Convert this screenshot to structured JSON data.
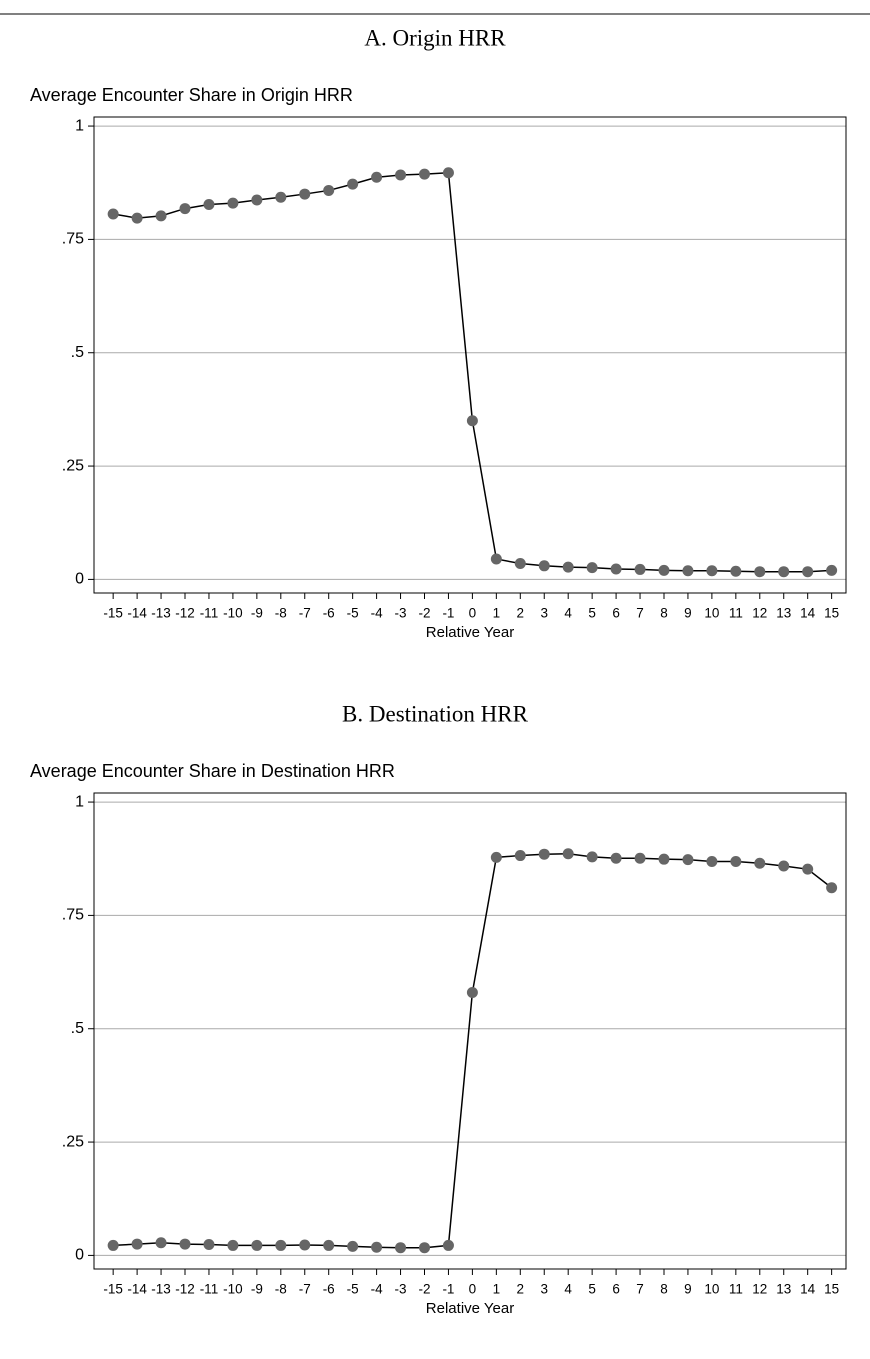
{
  "chart_data": [
    {
      "type": "line",
      "title": "A. Origin HRR",
      "y_label": "Average Encounter Share in Origin HRR",
      "x_label": "Relative Year",
      "x": [
        -15,
        -14,
        -13,
        -12,
        -11,
        -10,
        -9,
        -8,
        -7,
        -6,
        -5,
        -4,
        -3,
        -2,
        -1,
        0,
        1,
        2,
        3,
        4,
        5,
        6,
        7,
        8,
        9,
        10,
        11,
        12,
        13,
        14,
        15
      ],
      "values": [
        0.806,
        0.797,
        0.802,
        0.818,
        0.827,
        0.83,
        0.837,
        0.843,
        0.85,
        0.858,
        0.872,
        0.887,
        0.892,
        0.894,
        0.897,
        0.35,
        0.045,
        0.035,
        0.03,
        0.027,
        0.026,
        0.023,
        0.022,
        0.02,
        0.019,
        0.019,
        0.018,
        0.017,
        0.017,
        0.017,
        0.02
      ],
      "color": "#666666",
      "line_color": "#000000",
      "xlim": [
        -15.8,
        15.6
      ],
      "xticks": [
        -15,
        -14,
        -13,
        -12,
        -11,
        -10,
        -9,
        -8,
        -7,
        -6,
        -5,
        -4,
        -3,
        -2,
        -1,
        0,
        1,
        2,
        3,
        4,
        5,
        6,
        7,
        8,
        9,
        10,
        11,
        12,
        13,
        14,
        15
      ],
      "ylim": [
        -0.03,
        1.02
      ],
      "yticks": [
        0,
        {
          "value": 0.25,
          "label": ".25"
        },
        {
          "value": 0.5,
          "label": ".5"
        },
        {
          "value": 0.75,
          "label": ".75"
        },
        1
      ],
      "grid": true
    },
    {
      "type": "line",
      "title": "B. Destination HRR",
      "y_label": "Average Encounter Share in Destination HRR",
      "x_label": "Relative Year",
      "x": [
        -15,
        -14,
        -13,
        -12,
        -11,
        -10,
        -9,
        -8,
        -7,
        -6,
        -5,
        -4,
        -3,
        -2,
        -1,
        0,
        1,
        2,
        3,
        4,
        5,
        6,
        7,
        8,
        9,
        10,
        11,
        12,
        13,
        14,
        15
      ],
      "values": [
        0.022,
        0.025,
        0.028,
        0.025,
        0.024,
        0.022,
        0.022,
        0.022,
        0.023,
        0.022,
        0.02,
        0.018,
        0.017,
        0.017,
        0.022,
        0.58,
        0.878,
        0.882,
        0.885,
        0.886,
        0.879,
        0.876,
        0.876,
        0.874,
        0.873,
        0.869,
        0.869,
        0.865,
        0.859,
        0.852,
        0.811
      ],
      "color": "#666666",
      "line_color": "#000000",
      "xlim": [
        -15.8,
        15.6
      ],
      "xticks": [
        -15,
        -14,
        -13,
        -12,
        -11,
        -10,
        -9,
        -8,
        -7,
        -6,
        -5,
        -4,
        -3,
        -2,
        -1,
        0,
        1,
        2,
        3,
        4,
        5,
        6,
        7,
        8,
        9,
        10,
        11,
        12,
        13,
        14,
        15
      ],
      "ylim": [
        -0.03,
        1.02
      ],
      "yticks": [
        0,
        {
          "value": 0.25,
          "label": ".25"
        },
        {
          "value": 0.5,
          "label": ".5"
        },
        {
          "value": 0.75,
          "label": ".75"
        },
        1
      ],
      "grid": true
    }
  ]
}
